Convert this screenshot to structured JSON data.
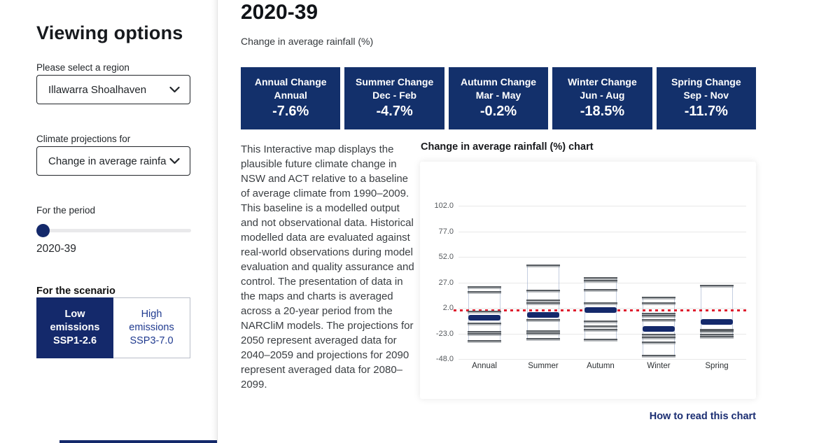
{
  "sidebar": {
    "title": "Viewing options",
    "region": {
      "label": "Please select a region",
      "value": "Illawarra Shoalhaven"
    },
    "projection": {
      "label": "Climate projections for",
      "value": "Change in average rainfa"
    },
    "period": {
      "label": "For the period",
      "value": "2020-39"
    },
    "scenario": {
      "label": "For the scenario",
      "low": {
        "line1": "Low",
        "line2": "emissions",
        "line3": "SSP1-2.6"
      },
      "high": {
        "line1": "High",
        "line2": "emissions",
        "line3": "SSP3-7.0"
      }
    }
  },
  "main": {
    "title": "2020-39",
    "subtitle": "Change in average rainfall (%)",
    "cards": [
      {
        "title": "Annual Change",
        "period": "Annual",
        "value": "-7.6%"
      },
      {
        "title": "Summer Change",
        "period": "Dec - Feb",
        "value": "-4.7%"
      },
      {
        "title": "Autumn Change",
        "period": "Mar - May",
        "value": "-0.2%"
      },
      {
        "title": "Winter Change",
        "period": "Jun - Aug",
        "value": "-18.5%"
      },
      {
        "title": "Spring Change",
        "period": "Sep - Nov",
        "value": "-11.7%"
      }
    ],
    "description": "This Interactive map displays the plausible future climate change in NSW and ACT relative to a baseline of average climate from 1990–2009. This baseline is a modelled output and not observational data. Historical modelled data are evaluated against real-world observations during model evaluation and quality assurance and control. The presentation of data in the maps and charts is averaged across a 20-year period from the NARCliM models. The projections for 2050 represent averaged data for 2040–2059 and projections for 2090 represent averaged data for 2080–2099.",
    "chart_title": "Change in average rainfall (%) chart",
    "chart_link": "How to read this chart"
  },
  "chart_data": {
    "type": "boxplot",
    "title": "Change in average rainfall (%) chart",
    "ylabel": "Change in average rainfall (%)",
    "yticks": [
      102.0,
      77.0,
      52.0,
      27.0,
      2.0,
      -23.0,
      -48.0
    ],
    "baseline": 0,
    "grid": true,
    "categories": [
      "Annual",
      "Summer",
      "Autumn",
      "Winter",
      "Spring"
    ],
    "means": [
      -7.6,
      -4.7,
      -0.2,
      -18.5,
      -11.7
    ],
    "boxes": [
      {
        "category": "Annual",
        "high": 22.5,
        "low": -30.0,
        "mean": -7.6,
        "model_lines": [
          22.5,
          18.0,
          -1.2,
          -13.0,
          -21.5,
          -23.0,
          -30.0
        ]
      },
      {
        "category": "Summer",
        "high": 43.5,
        "low": -28.0,
        "mean": -4.7,
        "model_lines": [
          43.5,
          19.0,
          9.8,
          7.0,
          -9.5,
          -20.5,
          -22.5,
          -28.0
        ]
      },
      {
        "category": "Autumn",
        "high": 31.5,
        "low": -29.0,
        "mean": -0.2,
        "model_lines": [
          31.5,
          28.5,
          20.0,
          7.0,
          -11.0,
          -16.0,
          -19.0,
          -29.0
        ]
      },
      {
        "category": "Winter",
        "high": 12.0,
        "low": -44.5,
        "mean": -18.5,
        "model_lines": [
          12.0,
          6.5,
          -3.5,
          -5.5,
          -9.5,
          -24.0,
          -27.0,
          -31.5,
          -44.5
        ]
      },
      {
        "category": "Spring",
        "high": 24.0,
        "low": -26.0,
        "mean": -11.7,
        "model_lines": [
          24.0,
          -19.0,
          -20.5,
          -24.0,
          -26.0
        ]
      }
    ],
    "colors": {
      "mean_bar": "#14296b",
      "model_line": "#585d62",
      "baseline": "#df1d2e",
      "card": "#13306b"
    }
  }
}
